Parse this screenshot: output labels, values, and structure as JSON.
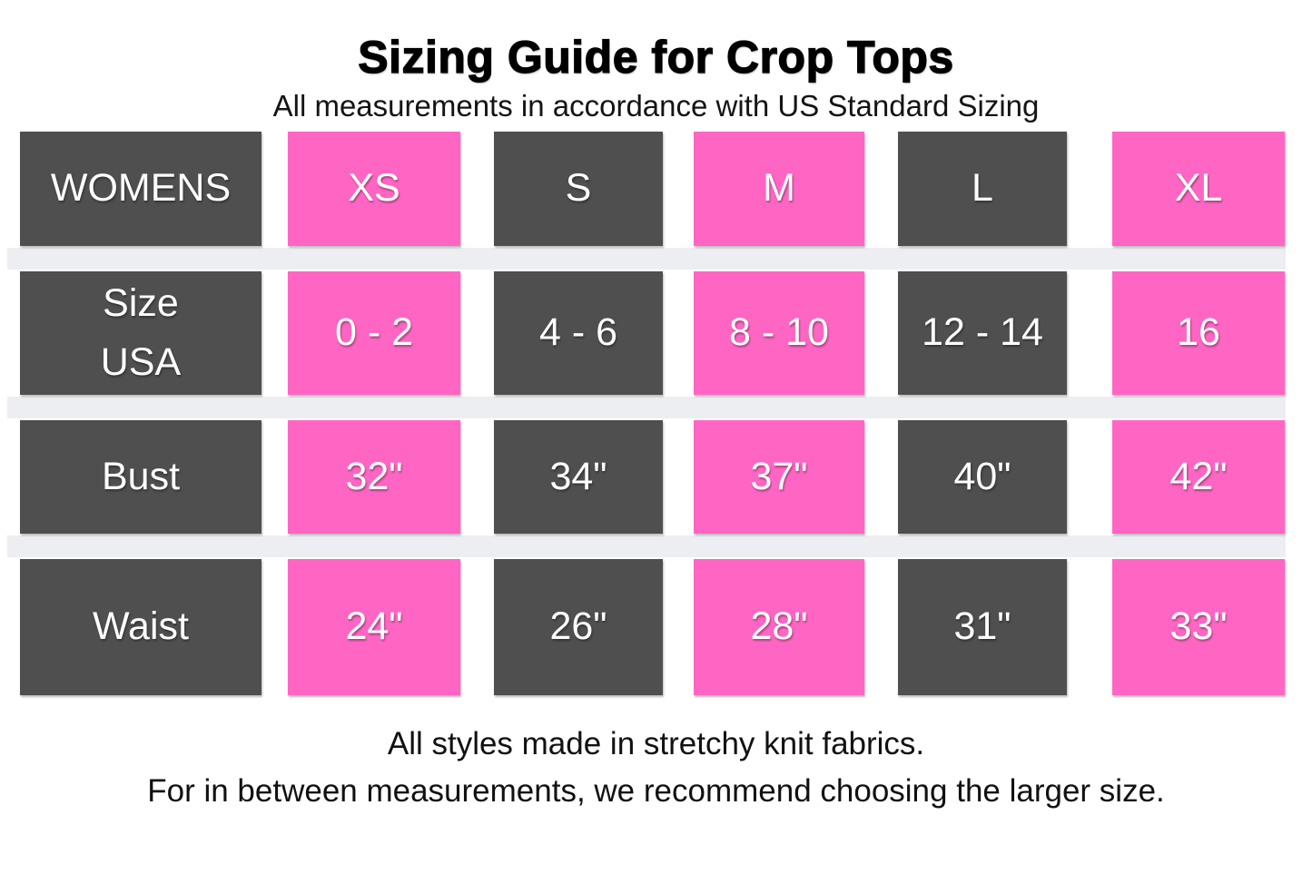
{
  "header": {
    "title": "Sizing Guide for Crop Tops",
    "subtitle": "All measurements in accordance with US Standard Sizing"
  },
  "table": {
    "header": [
      "WOMENS",
      "XS",
      "S",
      "M",
      "L",
      "XL"
    ],
    "rows": [
      {
        "label": "Size USA",
        "cells": [
          "Size\nUSA",
          "0 - 2",
          "4 - 6",
          "8 - 10",
          "12 - 14",
          "16"
        ]
      },
      {
        "label": "Bust",
        "cells": [
          "Bust",
          "32\"",
          "34\"",
          "37\"",
          "40\"",
          "42\""
        ]
      },
      {
        "label": "Waist",
        "cells": [
          "Waist",
          "24\"",
          "26\"",
          "28\"",
          "31\"",
          "33\""
        ]
      }
    ]
  },
  "footer": {
    "lines": [
      "All styles made in stretchy knit fabrics.",
      "For in between measurements, we recommend choosing the larger size."
    ]
  },
  "colors": {
    "pink": "#ff66c4",
    "dark_gray": "#4f4f4f",
    "separator_gray": "#eceef1",
    "cell_text": "#ffffff",
    "body_text": "#111111",
    "background": "#ffffff"
  },
  "chart_data": {
    "type": "table",
    "title": "Sizing Guide for Crop Tops",
    "subtitle": "All measurements in accordance with US Standard Sizing",
    "columns": [
      "WOMENS",
      "XS",
      "S",
      "M",
      "L",
      "XL"
    ],
    "rows": [
      {
        "label": "Size USA",
        "values": [
          "0 - 2",
          "4 - 6",
          "8 - 10",
          "12 - 14",
          "16"
        ]
      },
      {
        "label": "Bust",
        "values": [
          "32\"",
          "34\"",
          "37\"",
          "40\"",
          "42\""
        ]
      },
      {
        "label": "Waist",
        "values": [
          "24\"",
          "26\"",
          "28\"",
          "31\"",
          "33\""
        ]
      }
    ],
    "notes": [
      "All styles made in stretchy knit fabrics.",
      "For in between measurements, we recommend choosing the larger size."
    ],
    "layout_hints": {
      "header_columns_alternate_colors": [
        "dark_gray",
        "pink"
      ],
      "grid": "off",
      "row_separator_color": "#eceef1"
    }
  }
}
